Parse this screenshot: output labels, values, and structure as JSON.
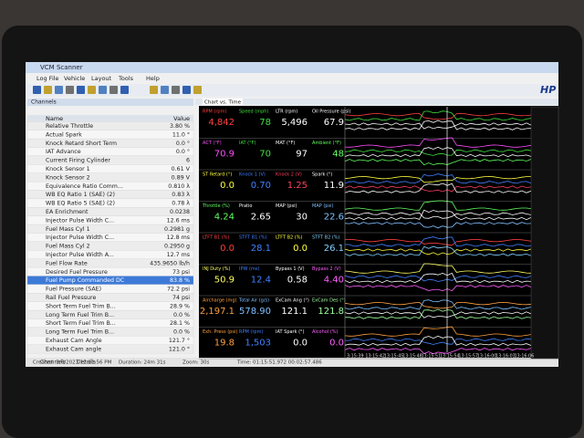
{
  "window": {
    "title": "VCM Scanner",
    "menu": [
      "Log File",
      "Vehicle",
      "Layout",
      "Tools",
      "Help"
    ],
    "logo": "HP"
  },
  "channels": {
    "title": "Channels",
    "header": [
      "Name",
      "Value"
    ],
    "rows": [
      [
        "Relative Throttle",
        "3.80 %"
      ],
      [
        "Actual Spark",
        "11.0 °"
      ],
      [
        "Knock Retard Short Term",
        "0.0 °"
      ],
      [
        "IAT Advance",
        "0.0 °"
      ],
      [
        "Current Firing Cylinder",
        "6"
      ],
      [
        "Knock Sensor 1",
        "0.61 V"
      ],
      [
        "Knock Sensor 2",
        "0.89 V"
      ],
      [
        "Equivalence Ratio Comm...",
        "0.810 λ"
      ],
      [
        "WB EQ Ratio 1 (SAE) (2)",
        "0.83 λ"
      ],
      [
        "WB EQ Ratio 5 (SAE) (2)",
        "0.78 λ"
      ],
      [
        "EA Enrichment",
        "0.0238"
      ],
      [
        "Injector Pulse Width C...",
        "12.6 ms"
      ],
      [
        "Fuel Mass Cyl 1",
        "0.2981 g"
      ],
      [
        "Injector Pulse Width C...",
        "12.8 ms"
      ],
      [
        "Fuel Mass Cyl 2",
        "0.2950 g"
      ],
      [
        "Injector Pulse Width A...",
        "12.7 ms"
      ],
      [
        "Fuel Flow Rate",
        "435.9650 lb/h"
      ],
      [
        "Desired Fuel Pressure",
        "73 psi"
      ],
      [
        "Fuel Pump Commanded DC",
        "83.8 %"
      ],
      [
        "Fuel Pressure (SAE)",
        "72.2 psi"
      ],
      [
        "Rail Fuel Pressure",
        "74 psi"
      ],
      [
        "Short Term Fuel Trim B...",
        "28.9 %"
      ],
      [
        "Long Term Fuel Trim B...",
        "0.0 %"
      ],
      [
        "Short Term Fuel Trim B...",
        "28.1 %"
      ],
      [
        "Long Term Fuel Trim B...",
        "0.0 %"
      ],
      [
        "Exhaust Cam Angle",
        "121.7 °"
      ],
      [
        "Exhaust Cam angle",
        "121.0 °"
      ]
    ],
    "selected_row": 18,
    "tabs": [
      "Channels",
      "Details"
    ]
  },
  "chart": {
    "tab": "Chart vs. Time",
    "gauges": [
      [
        {
          "label": "RPM (rpm)",
          "value": "4,842",
          "color": "#ff4040"
        },
        {
          "label": "Speed (mph)",
          "value": "78",
          "color": "#40e040"
        },
        {
          "label": "LTR (rpm)",
          "value": "5,496",
          "color": "#ffffff"
        },
        {
          "label": "Oil Pressure (psi)",
          "value": "67.9",
          "color": "#ffffff"
        }
      ],
      [
        {
          "label": "ACT (°F)",
          "value": "70.9",
          "color": "#ff50ff"
        },
        {
          "label": "IAT (°F)",
          "value": "70",
          "color": "#40e040"
        },
        {
          "label": "MAT (°F)",
          "value": "97",
          "color": "#ffffff"
        },
        {
          "label": "Ambient (°F)",
          "value": "48",
          "color": "#60ff60"
        }
      ],
      [
        {
          "label": "ST Retard (°)",
          "value": "0.0",
          "color": "#ffff40"
        },
        {
          "label": "Knock 1 (V)",
          "value": "0.70",
          "color": "#4080ff"
        },
        {
          "label": "Knock 2 (V)",
          "value": "1.25",
          "color": "#ff4060"
        },
        {
          "label": "Spark (°)",
          "value": "11.9",
          "color": "#ffffff"
        }
      ],
      [
        {
          "label": "Throttle (%)",
          "value": "4.24",
          "color": "#60ff60"
        },
        {
          "label": "Pratio",
          "value": "2.65",
          "color": "#ffffff"
        },
        {
          "label": "MAP (psi)",
          "value": "30",
          "color": "#ffffff"
        },
        {
          "label": "MAP (psi)",
          "value": "22.6",
          "color": "#80c0ff"
        }
      ],
      [
        {
          "label": "LTFT B1 (%)",
          "value": "0.0",
          "color": "#ff4040"
        },
        {
          "label": "STFT B1 (%)",
          "value": "28.1",
          "color": "#4080ff"
        },
        {
          "label": "LTFT B2 (%)",
          "value": "0.0",
          "color": "#ffff40"
        },
        {
          "label": "STFT B2 (%)",
          "value": "26.1",
          "color": "#80d0ff"
        }
      ],
      [
        {
          "label": "INJ Duty (%)",
          "value": "50.9",
          "color": "#ffff60"
        },
        {
          "label": "IPW (ms)",
          "value": "12.4",
          "color": "#4080ff"
        },
        {
          "label": "Bypass 1 (V)",
          "value": "0.58",
          "color": "#ffffff"
        },
        {
          "label": "Bypass 2 (V)",
          "value": "4.40",
          "color": "#ff60ff"
        }
      ],
      [
        {
          "label": "Aircharge (mg)",
          "value": "2,197.1",
          "color": "#ffa040"
        },
        {
          "label": "Total Air (g/s)",
          "value": "578.90",
          "color": "#80c0ff"
        },
        {
          "label": "ExCam Ang (°)",
          "value": "121.1",
          "color": "#ffffff"
        },
        {
          "label": "ExCam Des (°)",
          "value": "121.8",
          "color": "#a0ffa0"
        }
      ],
      [
        {
          "label": "Exh. Press (psi)",
          "value": "19.8",
          "color": "#ffa040"
        },
        {
          "label": "RPM (rpm)",
          "value": "1,503",
          "color": "#4080ff"
        },
        {
          "label": "IAT Spark (°)",
          "value": "0.0",
          "color": "#ffffff"
        },
        {
          "label": "Alcohol (%)",
          "value": "0.0",
          "color": "#ff60ff"
        }
      ]
    ],
    "time_labels": [
      "3:15:39",
      "13:15:42",
      "13:15:45",
      "13:15:48",
      "13:15:51",
      "13:15:54",
      "13:15:57",
      "13:16:00",
      "13:16:03",
      "13:16:06"
    ]
  },
  "status": {
    "created": "Created: 3/6/2023 12:11:56 PM",
    "duration": "Duration: 24m 31s",
    "zoom": "Zoom: 30s",
    "time": "Time: 01:15:51.972 00:02:57.486"
  }
}
